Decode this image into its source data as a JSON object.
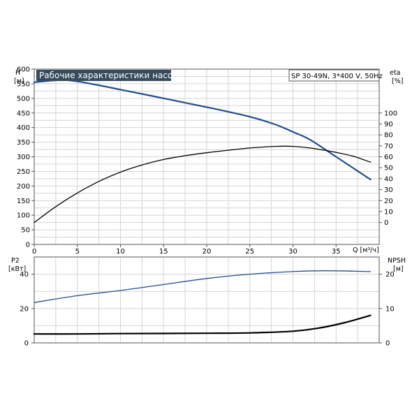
{
  "chart_data": [
    {
      "type": "line",
      "title": "Рабочие характеристики насоса",
      "subtitle": "SP 30-49N, 3*400 V, 50Hz",
      "x_label": "Q [м³/ч]",
      "x_lim": [
        0,
        40
      ],
      "x_ticks": [
        0,
        5,
        10,
        15,
        20,
        25,
        30,
        35
      ],
      "y_label_left": [
        "H",
        "[м]"
      ],
      "y_lim_left": [
        0,
        600
      ],
      "y_ticks_left": [
        0,
        50,
        100,
        150,
        200,
        250,
        300,
        350,
        400,
        450,
        500,
        550,
        600
      ],
      "y_label_right": [
        "eta",
        "[%]"
      ],
      "y_lim_right": [
        -20,
        140
      ],
      "y_ticks_right": [
        0,
        10,
        20,
        30,
        40,
        50,
        60,
        70,
        80,
        90,
        100
      ],
      "grid": true,
      "series": [
        {
          "axis": "left",
          "color": "#1f4e8c",
          "x": [
            0,
            2.8,
            5,
            10,
            15,
            20,
            25,
            28,
            30,
            32,
            35,
            39
          ],
          "y": [
            555,
            562,
            558,
            530,
            500,
            470,
            437,
            410,
            385,
            358,
            300,
            222
          ]
        },
        {
          "axis": "right",
          "color": "#000000",
          "x": [
            0,
            2.5,
            5,
            7.5,
            10,
            12.5,
            15,
            17.5,
            20,
            22.5,
            25,
            28,
            30,
            32,
            35,
            37,
            39
          ],
          "y": [
            0,
            14.5,
            27,
            37.5,
            46,
            52.5,
            57.5,
            61,
            63.7,
            66,
            68,
            69.5,
            69.5,
            68,
            64,
            60.5,
            55
          ]
        }
      ]
    },
    {
      "type": "line",
      "x_lim": [
        0,
        40
      ],
      "y_label_left": [
        "P2",
        "[кВт]"
      ],
      "y_lim_left": [
        0,
        50
      ],
      "y_ticks_left": [
        0,
        20,
        40
      ],
      "y_label_right": [
        "NPSH",
        "[м]"
      ],
      "y_lim_right": [
        0,
        25
      ],
      "y_ticks_right": [
        0,
        10,
        20
      ],
      "grid": true,
      "series": [
        {
          "axis": "left",
          "color": "#1f4e8c",
          "x": [
            0,
            5,
            10,
            15,
            20,
            25,
            30,
            34,
            39
          ],
          "y": [
            23.5,
            27.5,
            30.5,
            34,
            37.5,
            40,
            41.5,
            42,
            41.5
          ]
        },
        {
          "axis": "right",
          "color": "#000000",
          "x": [
            0,
            5,
            10,
            20,
            25,
            30,
            33,
            36,
            39
          ],
          "y": [
            2.6,
            2.6,
            2.7,
            2.8,
            2.9,
            3.4,
            4.3,
            5.9,
            8
          ]
        }
      ]
    }
  ]
}
